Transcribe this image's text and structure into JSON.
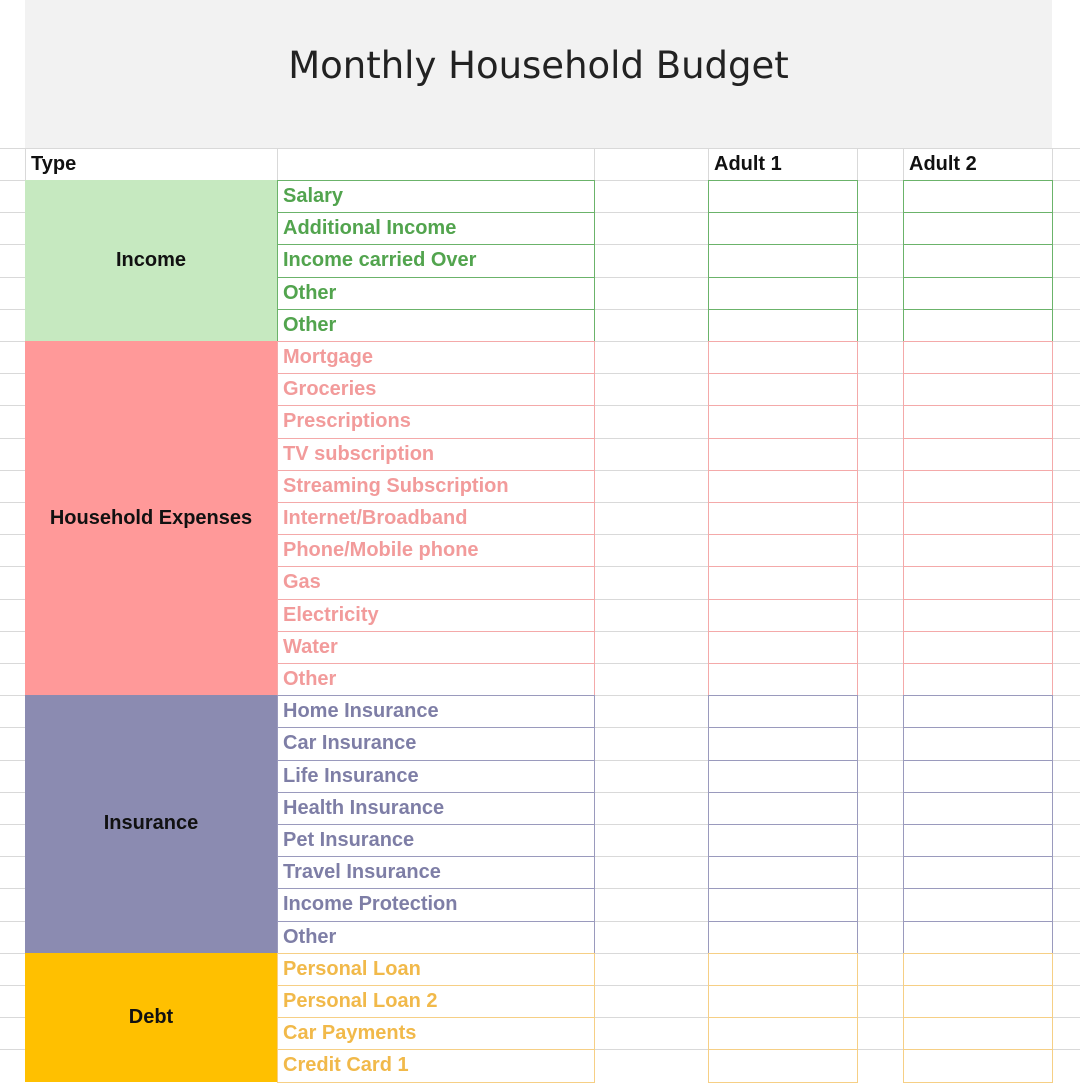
{
  "title": "Monthly Household Budget",
  "header": {
    "type": "Type",
    "adult1": "Adult 1",
    "adult2": "Adult 2"
  },
  "groups": [
    {
      "name": "Income",
      "bg": "#c6e9c0",
      "text": "#52a44e",
      "border": "#6bb36a",
      "items": [
        "Salary",
        "Additional Income",
        "Income carried Over",
        "Other",
        "Other"
      ]
    },
    {
      "name": "Household Expenses",
      "bg": "#ff9999",
      "text": "#f29b9b",
      "border": "#f4a9a9",
      "items": [
        "Mortgage",
        "Groceries",
        "Prescriptions",
        "TV subscription",
        "Streaming Subscription",
        "Internet/Broadband",
        "Phone/Mobile phone",
        "Gas",
        "Electricity",
        "Water",
        "Other"
      ]
    },
    {
      "name": "Insurance",
      "bg": "#8b8bb1",
      "text": "#7e7ea6",
      "border": "#9a9abd",
      "items": [
        "Home Insurance",
        "Car Insurance",
        "Life Insurance",
        "Health Insurance",
        "Pet Insurance",
        "Travel Insurance",
        "Income Protection",
        "Other"
      ]
    },
    {
      "name": "Debt",
      "bg": "#ffc000",
      "text": "#f1b94a",
      "border": "#f6cf85",
      "items": [
        "Personal Loan",
        "Personal Loan 2",
        "Car Payments",
        "Credit Card 1"
      ]
    }
  ]
}
